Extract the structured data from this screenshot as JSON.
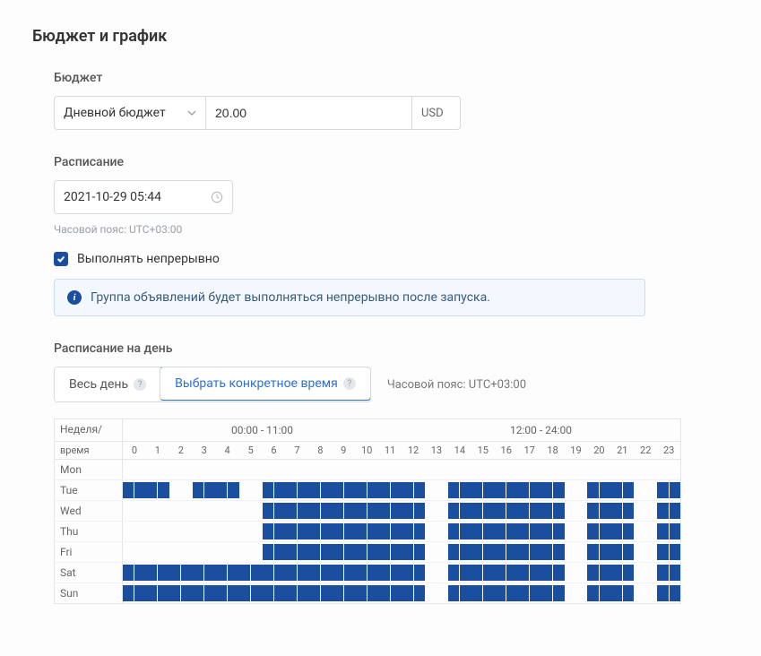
{
  "page_title": "Бюджет и график",
  "budget": {
    "label": "Бюджет",
    "type_selected": "Дневной бюджет",
    "amount": "20.00",
    "currency": "USD"
  },
  "schedule": {
    "label": "Расписание",
    "datetime": "2021-10-29 05:44",
    "tz_hint": "Часовой пояс: UTC+03:00",
    "continuous_checked": true,
    "continuous_label": "Выполнять непрерывно",
    "info_text": "Группа объявлений будет выполняться непрерывно после запуска."
  },
  "dayparting": {
    "label": "Расписание на день",
    "option_all_day": "Весь день",
    "option_specific": "Выбрать конкретное время",
    "tz_note": "Часовой пояс: UTC+03:00",
    "corner_label_1": "Неделя/",
    "corner_label_2": "время",
    "half_labels": [
      "00:00 - 11:00",
      "12:00 - 24:00"
    ],
    "hours": [
      "0",
      "1",
      "2",
      "3",
      "4",
      "5",
      "6",
      "7",
      "8",
      "9",
      "10",
      "11",
      "12",
      "13",
      "14",
      "15",
      "16",
      "17",
      "18",
      "19",
      "20",
      "21",
      "22",
      "23"
    ],
    "days": [
      "Mon",
      "Tue",
      "Wed",
      "Thu",
      "Fri",
      "Sat",
      "Sun"
    ],
    "grid": [
      [
        0,
        0,
        0,
        0,
        0,
        0,
        0,
        0,
        0,
        0,
        0,
        0,
        0,
        0,
        0,
        0,
        0,
        0,
        0,
        0,
        0,
        0,
        0,
        0
      ],
      [
        1,
        1,
        0,
        1,
        1,
        0,
        1,
        1,
        1,
        1,
        1,
        1,
        1,
        0,
        1,
        1,
        1,
        1,
        1,
        0,
        1,
        1,
        0,
        1
      ],
      [
        0,
        0,
        0,
        0,
        0,
        0,
        1,
        1,
        1,
        1,
        1,
        1,
        1,
        0,
        1,
        1,
        1,
        1,
        1,
        0,
        1,
        1,
        0,
        1
      ],
      [
        0,
        0,
        0,
        0,
        0,
        0,
        1,
        1,
        1,
        1,
        1,
        1,
        1,
        0,
        1,
        1,
        1,
        1,
        1,
        0,
        1,
        1,
        0,
        1
      ],
      [
        0,
        0,
        0,
        0,
        0,
        0,
        1,
        1,
        1,
        1,
        1,
        1,
        1,
        0,
        1,
        1,
        1,
        1,
        1,
        0,
        1,
        1,
        0,
        1
      ],
      [
        1,
        1,
        1,
        1,
        1,
        1,
        1,
        1,
        1,
        1,
        1,
        1,
        1,
        0,
        1,
        1,
        1,
        1,
        1,
        0,
        1,
        1,
        0,
        1
      ],
      [
        1,
        1,
        1,
        1,
        1,
        1,
        1,
        1,
        1,
        1,
        1,
        1,
        1,
        0,
        1,
        1,
        1,
        1,
        1,
        0,
        1,
        1,
        0,
        1
      ]
    ]
  },
  "colors": {
    "accent": "#1a4fa0",
    "border": "#d7dbe0",
    "info_bg": "#f2f8fd",
    "info_border": "#c7dced"
  }
}
